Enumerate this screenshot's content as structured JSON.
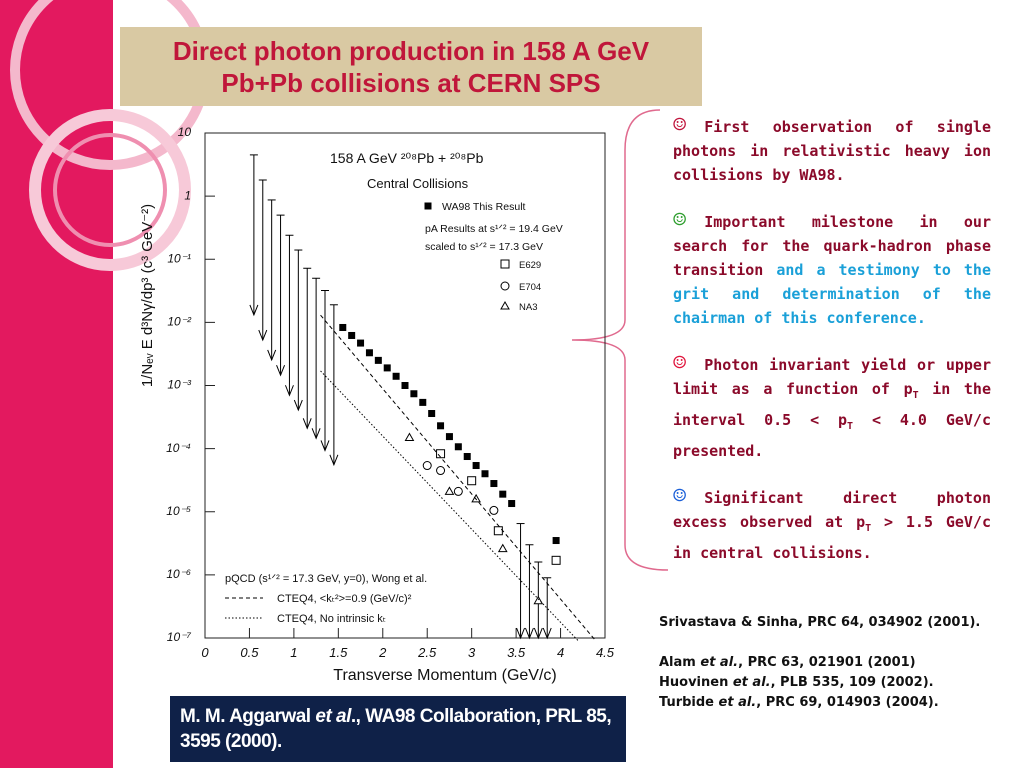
{
  "title": [
    "Direct photon production in 158 A GeV",
    "Pb+Pb collisions at CERN SPS"
  ],
  "chart_data": {
    "type": "scatter",
    "xlabel": "Transverse Momentum (GeV/c)",
    "ylabel": "1/Nₑᵥ E d³Nγ/dp³  (c³ GeV⁻²)",
    "xlim": [
      0,
      4.5
    ],
    "xticks": [
      0,
      0.5,
      1,
      1.5,
      2,
      2.5,
      3,
      3.5,
      4,
      4.5
    ],
    "ylim": [
      1e-07,
      10
    ],
    "ylog": true,
    "yticks": [
      {
        "value": 10,
        "label": "10"
      },
      {
        "value": 1,
        "label": "1"
      },
      {
        "value": 0.1,
        "label": "10⁻¹"
      },
      {
        "value": 0.01,
        "label": "10⁻²"
      },
      {
        "value": 0.001,
        "label": "10⁻³"
      },
      {
        "value": 0.0001,
        "label": "10⁻⁴"
      },
      {
        "value": 1e-05,
        "label": "10⁻⁵"
      },
      {
        "value": 1e-06,
        "label": "10⁻⁶"
      },
      {
        "value": 1e-07,
        "label": "10⁻⁷"
      }
    ],
    "annotations": [
      "158 A GeV ²⁰⁸Pb + ²⁰⁸Pb",
      "Central Collisions",
      "pA Results at s¹ᐟ² = 19.4 GeV",
      "scaled to  s¹ᐟ² = 17.3 GeV",
      "pQCD  (s¹ᐟ² = 17.3 GeV, y=0), Wong et al."
    ],
    "series": [
      {
        "name": "WA98 This Result",
        "marker": "filled-square",
        "color": "#000000",
        "x": [
          1.55,
          1.65,
          1.75,
          1.85,
          1.95,
          2.05,
          2.15,
          2.25,
          2.35,
          2.45,
          2.55,
          2.65,
          2.75,
          2.85,
          2.95,
          3.05,
          3.15,
          3.25,
          3.35,
          3.45,
          3.95
        ],
        "values": [
          0.0083,
          0.0062,
          0.0047,
          0.0033,
          0.0025,
          0.0019,
          0.0014,
          0.001,
          0.00074,
          0.00054,
          0.00036,
          0.00023,
          0.000155,
          0.000107,
          7.5e-05,
          5.4e-05,
          4e-05,
          2.8e-05,
          1.9e-05,
          1.35e-05,
          3.5e-06
        ]
      },
      {
        "marker": "upper-limit",
        "color": "#000000",
        "x": [
          0.55,
          0.65,
          0.75,
          0.85,
          0.95,
          1.05,
          1.15,
          1.25,
          1.35,
          1.45,
          3.55,
          3.65,
          3.75,
          3.85
        ],
        "values": [
          4.5,
          1.8,
          0.87,
          0.5,
          0.24,
          0.14,
          0.072,
          0.05,
          0.032,
          0.019,
          6.5e-06,
          3e-06,
          1.6e-06,
          9e-07
        ]
      },
      {
        "name": "E629",
        "marker": "open-square",
        "color": "#000000",
        "x": [
          2.65,
          3.0,
          3.3,
          3.95
        ],
        "values": [
          8.3e-05,
          3.1e-05,
          5e-06,
          1.7e-06
        ]
      },
      {
        "name": "E704",
        "marker": "open-circle",
        "color": "#000000",
        "x": [
          2.5,
          2.65,
          2.85,
          3.25
        ],
        "values": [
          5.4e-05,
          4.5e-05,
          2.1e-05,
          1.05e-05
        ]
      },
      {
        "name": "NA3",
        "marker": "open-triangle",
        "color": "#000000",
        "x": [
          2.3,
          2.75,
          3.05,
          3.35,
          3.75
        ],
        "values": [
          0.00015,
          2.1e-05,
          1.6e-05,
          2.6e-06,
          3.9e-07
        ]
      },
      {
        "name": "CTEQ4, <kₜ²>=0.9 (GeV/c)²",
        "marker": "dashed-line",
        "color": "#000000",
        "x": [
          1.3,
          4.4
        ],
        "values": [
          0.013,
          8.9e-08
        ]
      },
      {
        "name": "CTEQ4, No intrinsic kₜ",
        "marker": "dotted-line",
        "color": "#000000",
        "x": [
          1.3,
          4.2
        ],
        "values": [
          0.0017,
          9e-08
        ]
      }
    ]
  },
  "citation": [
    "M. M. Aggarwal ",
    "et al",
    "., WA98 Collaboration, PRL 85, 3595 (2000)."
  ],
  "bullets": [
    {
      "icon": "☺",
      "icon_color": "#c0143c",
      "parts": [
        {
          "text": "First observation of single photons in relativistic heavy ion collisions by WA98.",
          "color": "#8b0a2a"
        }
      ]
    },
    {
      "icon": "☺",
      "icon_color": "#2e9e2e",
      "parts": [
        {
          "text": "Important milestone in our search  for the quark-hadron phase transition ",
          "color": "#8b0a2a"
        },
        {
          "text": "and a testimony to the grit and determination of the chairman of this conference.",
          "color": "#1aa0d8"
        }
      ]
    },
    {
      "icon": "☺",
      "icon_color": "#e0143c",
      "parts": [
        {
          "text": "Photon invariant yield or upper limit as a function of p",
          "color": "#8b0a2a"
        },
        {
          "sub": "T",
          "color": "#8b0a2a"
        },
        {
          "text": " in the interval 0.5 < p",
          "color": "#8b0a2a"
        },
        {
          "sub": "T",
          "color": "#8b0a2a"
        },
        {
          "text": " < 4.0 GeV/c presented.",
          "color": "#8b0a2a"
        }
      ]
    },
    {
      "icon": "☺",
      "icon_color": "#1a5fd8",
      "parts": [
        {
          "text": "Significant direct photon excess observed at p",
          "color": "#8b0a2a"
        },
        {
          "sub": "T",
          "color": "#8b0a2a"
        },
        {
          "text": " > 1.5 GeV/c in central collisions.",
          "color": "#8b0a2a"
        }
      ]
    }
  ],
  "references": [
    [
      {
        "text": "Srivastava & Sinha, PRC 64, 034902 (2001)."
      }
    ],
    [
      {
        "text": "Alam "
      },
      {
        "em": "et al."
      },
      {
        "text": ", PRC 63, 021901 (2001)"
      }
    ],
    [
      {
        "text": "Huovinen "
      },
      {
        "em": "et al."
      },
      {
        "text": ", PLB 535, 109 (2002)."
      }
    ],
    [
      {
        "text": "Turbide "
      },
      {
        "em": "et al."
      },
      {
        "text": ", PRC 69, 014903 (2004)."
      }
    ]
  ]
}
